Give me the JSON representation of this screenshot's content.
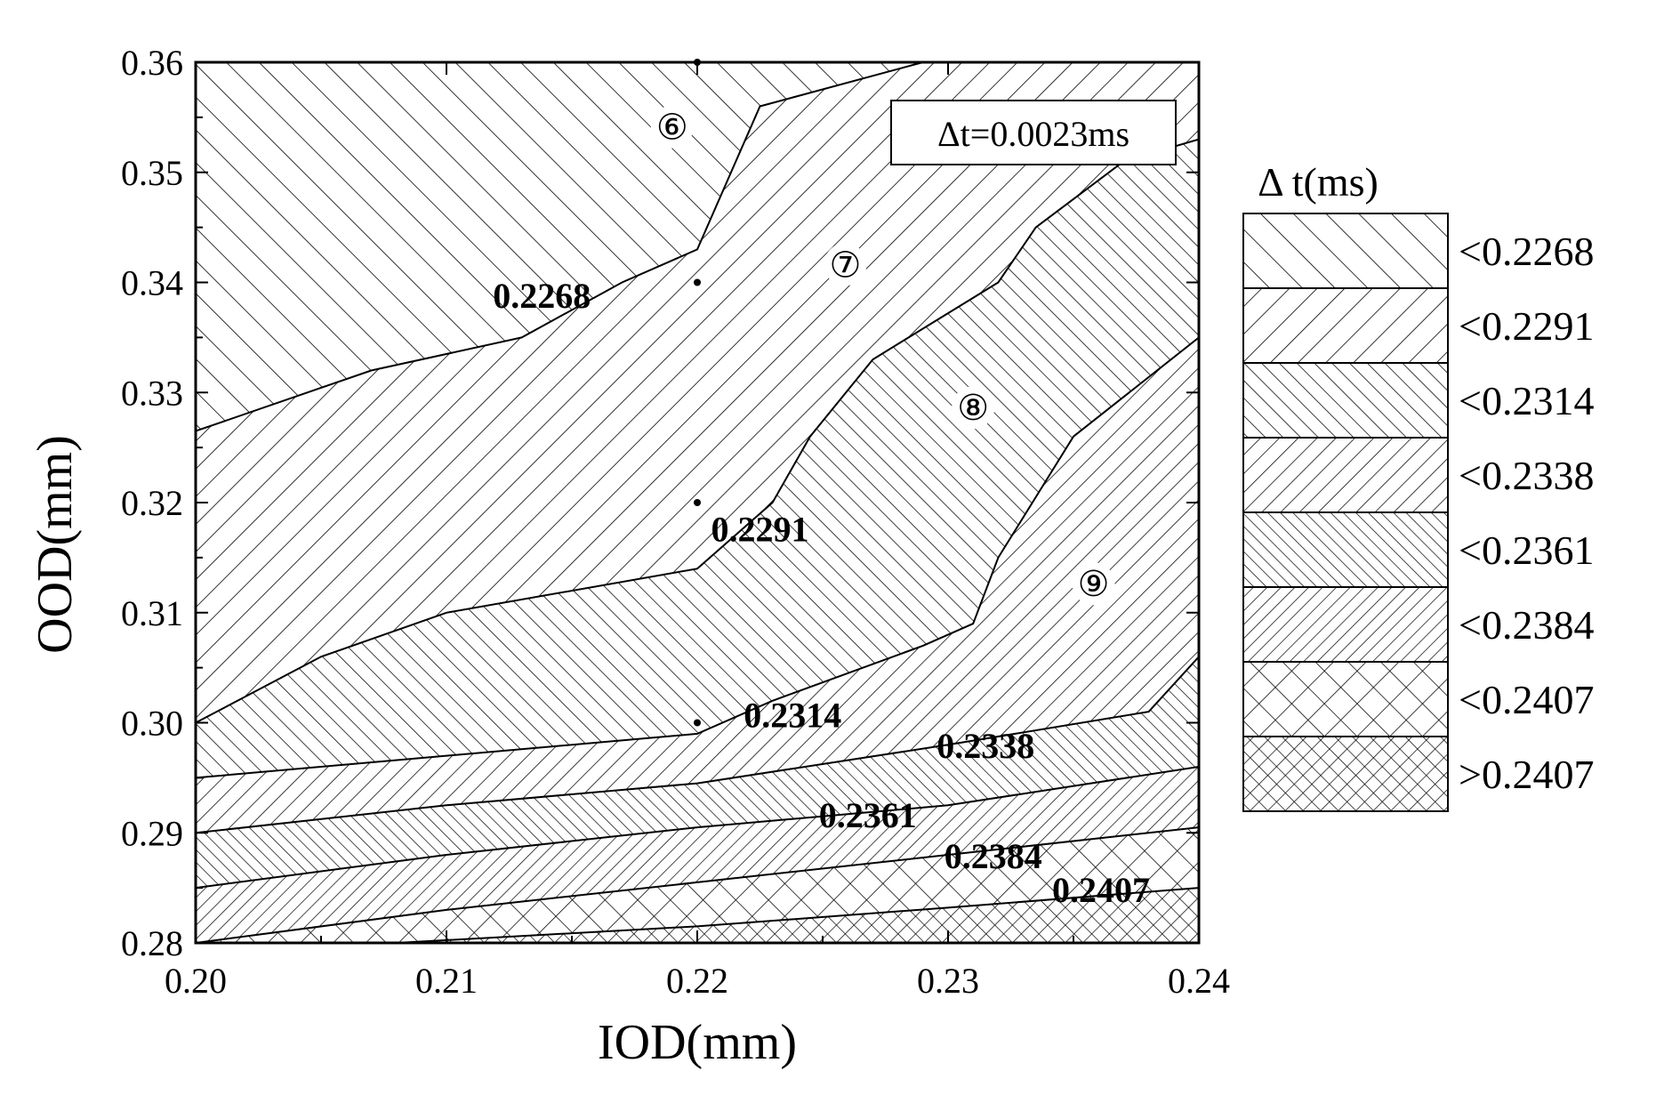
{
  "chart_data": {
    "type": "contour",
    "xlabel": "IOD(mm)",
    "ylabel": "OOD(mm)",
    "xlim": [
      0.2,
      0.24
    ],
    "ylim": [
      0.28,
      0.36
    ],
    "x_ticks": [
      "0.20",
      "0.21",
      "0.22",
      "0.23",
      "0.24"
    ],
    "y_ticks": [
      "0.28",
      "0.29",
      "0.30",
      "0.31",
      "0.32",
      "0.33",
      "0.34",
      "0.35",
      "0.36"
    ],
    "annotation": "Δt=0.0023ms",
    "legend_title": "Δ t(ms)",
    "legend": [
      {
        "label": "<0.2268",
        "pattern": "hatch-fwd"
      },
      {
        "label": "<0.2291",
        "pattern": "hatch-back"
      },
      {
        "label": "<0.2314",
        "pattern": "hatch-fwd-dense"
      },
      {
        "label": "<0.2338",
        "pattern": "hatch-back-dense"
      },
      {
        "label": "<0.2361",
        "pattern": "hatch-fwd-vdense"
      },
      {
        "label": "<0.2384",
        "pattern": "hatch-back-vdense"
      },
      {
        "label": "<0.2407",
        "pattern": "cross"
      },
      {
        "label": ">0.2407",
        "pattern": "cross-dense"
      }
    ],
    "contours": [
      {
        "level": "0.2268",
        "points": [
          [
            0.2,
            0.3265
          ],
          [
            0.207,
            0.332
          ],
          [
            0.213,
            0.335
          ],
          [
            0.217,
            0.34
          ],
          [
            0.22,
            0.343
          ],
          [
            0.2225,
            0.356
          ],
          [
            0.229,
            0.36
          ]
        ],
        "label_at": [
          0.2138,
          0.3377
        ]
      },
      {
        "level": "0.2291",
        "points": [
          [
            0.2,
            0.3
          ],
          [
            0.205,
            0.306
          ],
          [
            0.21,
            0.31
          ],
          [
            0.22,
            0.314
          ],
          [
            0.223,
            0.32
          ],
          [
            0.2245,
            0.326
          ],
          [
            0.227,
            0.333
          ],
          [
            0.232,
            0.34
          ],
          [
            0.2335,
            0.345
          ],
          [
            0.237,
            0.351
          ],
          [
            0.24,
            0.353
          ]
        ],
        "label_at": [
          0.2225,
          0.3165
        ]
      },
      {
        "level": "0.2314",
        "points": [
          [
            0.2,
            0.295
          ],
          [
            0.21,
            0.297
          ],
          [
            0.22,
            0.299
          ],
          [
            0.223,
            0.302
          ],
          [
            0.229,
            0.307
          ],
          [
            0.231,
            0.309
          ],
          [
            0.232,
            0.315
          ],
          [
            0.235,
            0.326
          ],
          [
            0.24,
            0.335
          ]
        ],
        "label_at": [
          0.2238,
          0.2996
        ]
      },
      {
        "level": "0.2338",
        "points": [
          [
            0.2,
            0.29
          ],
          [
            0.21,
            0.2925
          ],
          [
            0.22,
            0.2945
          ],
          [
            0.23,
            0.298
          ],
          [
            0.238,
            0.301
          ],
          [
            0.24,
            0.306
          ]
        ],
        "label_at": [
          0.2315,
          0.2968
        ]
      },
      {
        "level": "0.2361",
        "points": [
          [
            0.2,
            0.285
          ],
          [
            0.21,
            0.288
          ],
          [
            0.22,
            0.2905
          ],
          [
            0.23,
            0.2925
          ],
          [
            0.24,
            0.296
          ]
        ],
        "label_at": [
          0.2268,
          0.2905
        ]
      },
      {
        "level": "0.2384",
        "points": [
          [
            0.2,
            0.28
          ],
          [
            0.21,
            0.283
          ],
          [
            0.22,
            0.2855
          ],
          [
            0.23,
            0.288
          ],
          [
            0.24,
            0.2905
          ]
        ],
        "label_at": [
          0.2318,
          0.2868
        ]
      },
      {
        "level": "0.2407",
        "points": [
          [
            0.208,
            0.28
          ],
          [
            0.22,
            0.2815
          ],
          [
            0.23,
            0.2832
          ],
          [
            0.24,
            0.285
          ]
        ],
        "label_at": [
          0.2361,
          0.2837
        ]
      }
    ],
    "regions": [
      {
        "id": "6",
        "symbol": "⑥",
        "at": [
          0.219,
          0.353
        ]
      },
      {
        "id": "7",
        "symbol": "⑦",
        "at": [
          0.2259,
          0.3405
        ]
      },
      {
        "id": "8",
        "symbol": "⑧",
        "at": [
          0.231,
          0.3275
        ]
      },
      {
        "id": "9",
        "symbol": "⑨",
        "at": [
          0.2358,
          0.3115
        ]
      }
    ],
    "sample_points": [
      [
        0.22,
        0.36
      ],
      [
        0.22,
        0.34
      ],
      [
        0.22,
        0.32
      ],
      [
        0.22,
        0.3
      ]
    ]
  }
}
